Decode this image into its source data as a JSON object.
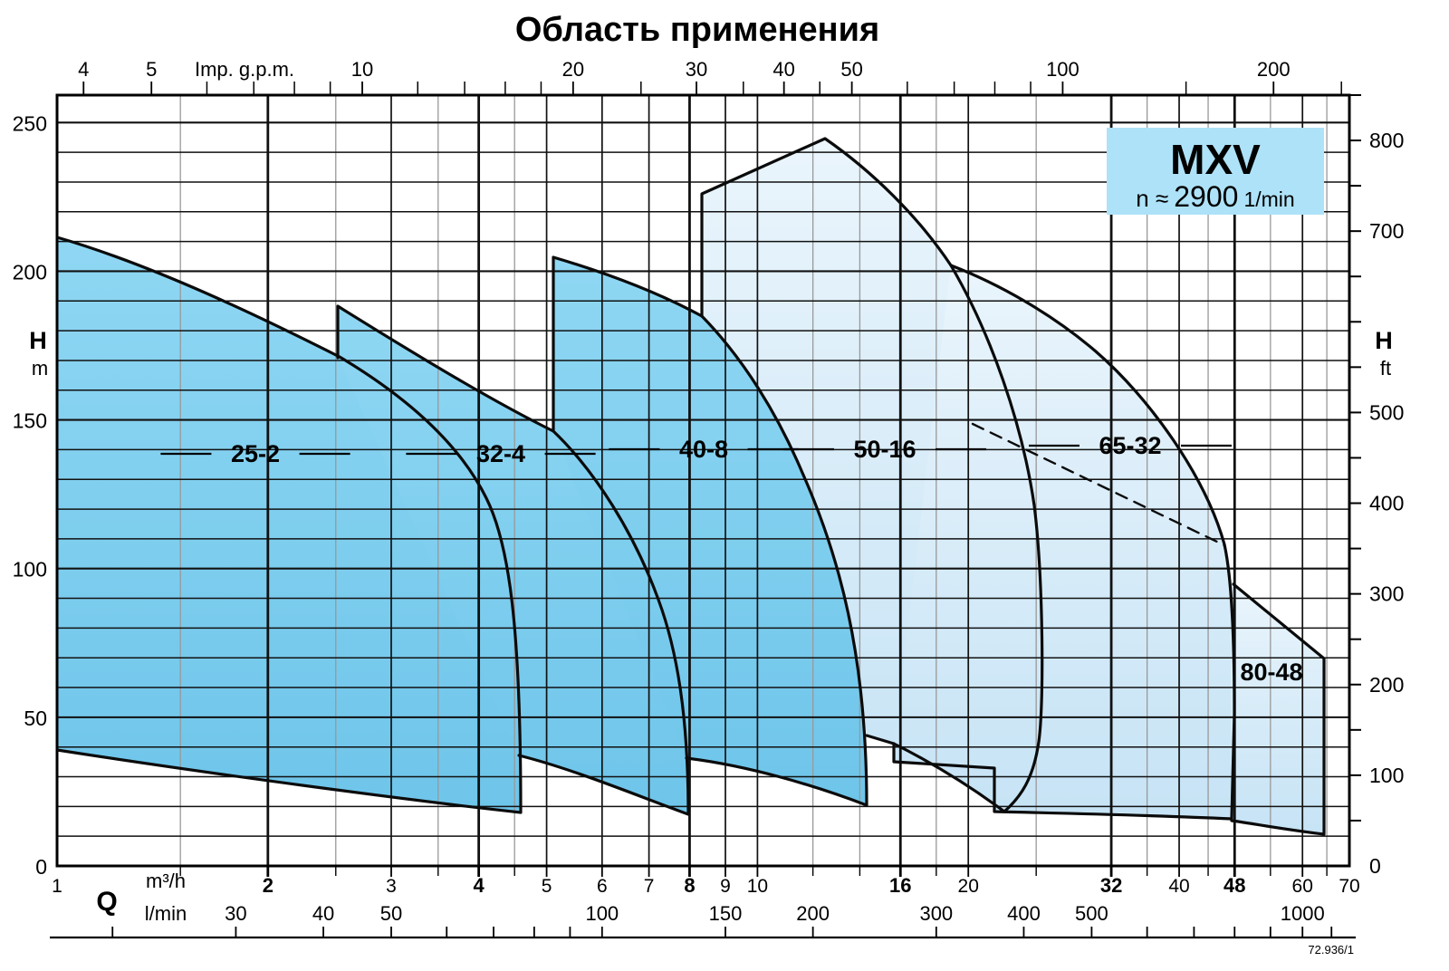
{
  "title": "Область применения",
  "badge": {
    "model": "MXV",
    "speed_prefix": "n ≈",
    "speed_value": "2900",
    "speed_unit": "1/min"
  },
  "footnote": "72.936/1",
  "colors": {
    "sail_dark_top": "#8fd7f3",
    "sail_dark_bottom": "#6ec5ea",
    "sail_light_top": "#eaf5fc",
    "sail_light_bottom": "#c6e3f5",
    "badge_bg": "#aee2f8",
    "outline": "#0b0b0b",
    "grid_major": "#111111",
    "grid_minor": "#999999"
  },
  "axes": {
    "top": {
      "label": "Imp. g.p.m.",
      "major": [
        4,
        5,
        10,
        20,
        30,
        40,
        50,
        100,
        200
      ],
      "minor": [
        6,
        7,
        8,
        9,
        12,
        14,
        16,
        18,
        25,
        35,
        45,
        60,
        70,
        80,
        90,
        150,
        250
      ]
    },
    "left": {
      "symbol": "H",
      "unit": "m",
      "ticks": [
        0,
        50,
        100,
        150,
        200,
        250
      ]
    },
    "right": {
      "symbol": "H",
      "unit": "ft",
      "ticks": [
        0,
        100,
        200,
        300,
        400,
        500,
        700,
        800
      ],
      "tick_step_ft": 50
    },
    "bottom_m3h": {
      "symbol": "Q",
      "unit": "m³/h",
      "labels": [
        1,
        2,
        3,
        4,
        5,
        6,
        7,
        8,
        9,
        10,
        16,
        20,
        32,
        40,
        48,
        60,
        70
      ],
      "bold": [
        2,
        4,
        8,
        16,
        32,
        48
      ]
    },
    "bottom_lmin": {
      "unit": "l/min",
      "labels": [
        30,
        40,
        50,
        100,
        150,
        200,
        300,
        400,
        500,
        1000
      ],
      "ticks": [
        20,
        30,
        40,
        50,
        60,
        70,
        80,
        90,
        100,
        150,
        200,
        300,
        400,
        500,
        600,
        700,
        800,
        900,
        1000,
        1100
      ]
    }
  },
  "grid": {
    "horizontal_step_m": 10,
    "v_major_q": [
      2,
      3,
      4,
      5,
      6,
      7,
      8,
      9,
      10,
      16,
      20,
      32,
      40,
      48,
      60
    ],
    "v_minor_q": [
      1.5,
      2.5,
      3.5,
      4.5,
      12,
      14,
      18,
      25,
      36,
      44,
      54,
      65
    ]
  },
  "regions": [
    {
      "label": "25-2",
      "shade": "dark",
      "dashes": true
    },
    {
      "label": "32-4",
      "shade": "dark",
      "dashes": true
    },
    {
      "label": "40-8",
      "shade": "dark",
      "dashes": true
    },
    {
      "label": "50-16",
      "shade": "light",
      "dashes": true
    },
    {
      "label": "65-32",
      "shade": "light",
      "dashes": true
    },
    {
      "label": "80-48",
      "shade": "light",
      "dashes": false
    }
  ],
  "chart_data": {
    "type": "area",
    "title": "Область применения",
    "x_axis": {
      "label_bottom": "Q m³/h",
      "label_bottom2": "Q l/min",
      "label_top": "Imp. g.p.m.",
      "scale": "log",
      "range_m3h": [
        1,
        70
      ]
    },
    "y_axis": {
      "label_left": "H m",
      "label_right": "H ft",
      "scale": "linear",
      "range_m": [
        0,
        259
      ]
    },
    "legend_note": "n ≈ 2900 1/min",
    "series": [
      {
        "name": "25-2",
        "envelope_top_QH": [
          [
            1,
            211
          ],
          [
            1.5,
            196
          ],
          [
            2,
            180
          ],
          [
            2.5,
            171
          ],
          [
            3,
            150
          ],
          [
            3.5,
            133
          ],
          [
            4,
            112
          ],
          [
            4.4,
            65
          ],
          [
            4.6,
            18
          ]
        ],
        "envelope_bottom_QH": [
          [
            1,
            39
          ],
          [
            2,
            34
          ],
          [
            3,
            28
          ],
          [
            4,
            23
          ],
          [
            4.6,
            18
          ]
        ]
      },
      {
        "name": "32-4",
        "envelope_top_QH": [
          [
            2.5,
            188
          ],
          [
            3.5,
            162
          ],
          [
            5,
            146
          ],
          [
            6,
            119
          ],
          [
            7,
            78
          ],
          [
            7.9,
            17
          ]
        ],
        "envelope_bottom_QH": [
          [
            4.6,
            37
          ],
          [
            6,
            31
          ],
          [
            7,
            26
          ],
          [
            7.9,
            17
          ]
        ]
      },
      {
        "name": "40-8",
        "envelope_top_QH": [
          [
            5,
            205
          ],
          [
            6,
            197
          ],
          [
            8,
            185
          ],
          [
            10,
            160
          ],
          [
            12,
            126
          ],
          [
            13.5,
            82
          ],
          [
            14.3,
            20
          ]
        ],
        "envelope_bottom_QH": [
          [
            8,
            36
          ],
          [
            10,
            32
          ],
          [
            12,
            27
          ],
          [
            14.3,
            20
          ]
        ]
      },
      {
        "name": "50-16",
        "envelope_top_QH": [
          [
            8.3,
            226
          ],
          [
            12.5,
            245
          ],
          [
            16,
            216
          ],
          [
            19,
            202
          ],
          [
            22,
            160
          ],
          [
            24,
            124
          ],
          [
            25.3,
            55
          ],
          [
            22.6,
            18
          ]
        ],
        "envelope_bottom_QH": [
          [
            14.3,
            44
          ],
          [
            16,
            41
          ],
          [
            19,
            34
          ],
          [
            22.6,
            18
          ]
        ]
      },
      {
        "name": "65-32",
        "envelope_top_QH": [
          [
            19,
            202
          ],
          [
            25,
            184
          ],
          [
            32,
            167
          ],
          [
            40,
            134
          ],
          [
            46,
            108
          ],
          [
            47.5,
            55
          ],
          [
            47.5,
            16
          ]
        ],
        "envelope_bottom_QH": [
          [
            15.7,
            35
          ],
          [
            22,
            33
          ],
          [
            32,
            25
          ],
          [
            47.5,
            15
          ]
        ]
      },
      {
        "name": "80-48",
        "envelope_top_QH": [
          [
            48,
            95
          ],
          [
            56,
            81
          ],
          [
            64.5,
            70
          ]
        ],
        "envelope_bottom_QH": [
          [
            47.5,
            15
          ],
          [
            64.5,
            10
          ]
        ]
      }
    ],
    "annotations": [
      {
        "type": "dashed-line",
        "from_QH": [
          20.3,
          148
        ],
        "to_QH": [
          46.5,
          108
        ]
      }
    ],
    "values_estimated_from_pixels": true
  }
}
